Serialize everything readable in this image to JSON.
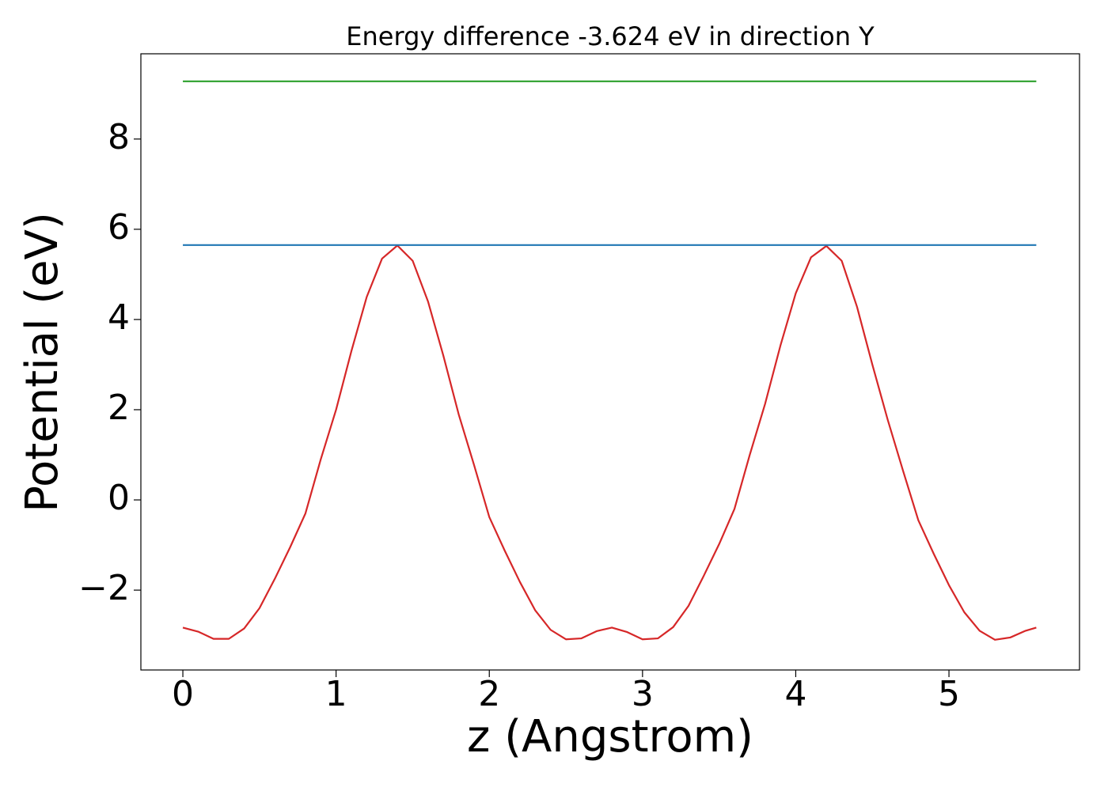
{
  "chart_data": {
    "type": "line",
    "title": "Energy difference -3.624 eV in direction Y",
    "x_label": "z (Angstrom)",
    "y_label": "Potential (eV)",
    "xlim": [
      -0.274,
      5.852
    ],
    "ylim": [
      -3.77,
      9.89
    ],
    "xticks": [
      0,
      1,
      2,
      3,
      4,
      5
    ],
    "yticks": [
      {
        "value": -2,
        "label": "−2"
      },
      0,
      2,
      4,
      6,
      8
    ],
    "series": [
      {
        "color": "#d62728",
        "x": [
          0,
          0.1,
          0.2,
          0.3,
          0.4,
          0.5,
          0.6,
          0.7,
          0.8,
          0.9,
          1.0,
          1.1,
          1.2,
          1.3,
          1.4,
          1.5,
          1.6,
          1.7,
          1.8,
          1.9,
          2.0,
          2.1,
          2.2,
          2.3,
          2.4,
          2.5,
          2.6,
          2.7,
          2.8,
          2.9,
          3.0,
          3.1,
          3.2,
          3.3,
          3.4,
          3.5,
          3.6,
          3.7,
          3.8,
          3.9,
          4.0,
          4.1,
          4.2,
          4.3,
          4.4,
          4.5,
          4.6,
          4.7,
          4.8,
          4.9,
          5.0,
          5.1,
          5.2,
          5.3,
          5.4,
          5.5,
          5.57
        ],
        "values": [
          -2.83,
          -2.92,
          -3.08,
          -3.08,
          -2.85,
          -2.4,
          -1.75,
          -1.05,
          -0.3,
          0.9,
          2.0,
          3.3,
          4.5,
          5.35,
          5.64,
          5.3,
          4.4,
          3.2,
          1.9,
          0.78,
          -0.38,
          -1.12,
          -1.82,
          -2.45,
          -2.88,
          -3.09,
          -3.07,
          -2.91,
          -2.83,
          -2.93,
          -3.09,
          -3.07,
          -2.82,
          -2.35,
          -1.68,
          -0.98,
          -0.2,
          1.0,
          2.13,
          3.42,
          4.58,
          5.38,
          5.63,
          5.3,
          4.28,
          3.0,
          1.78,
          0.65,
          -0.45,
          -1.19,
          -1.89,
          -2.49,
          -2.9,
          -3.1,
          -3.05,
          -2.9,
          -2.83
        ]
      },
      {
        "color": "#1f77b4",
        "x": [
          0,
          5.57
        ],
        "values": [
          5.65,
          5.65
        ]
      },
      {
        "color": "#2ca02c",
        "x": [
          0,
          5.57
        ],
        "values": [
          9.28,
          9.28
        ]
      }
    ]
  }
}
